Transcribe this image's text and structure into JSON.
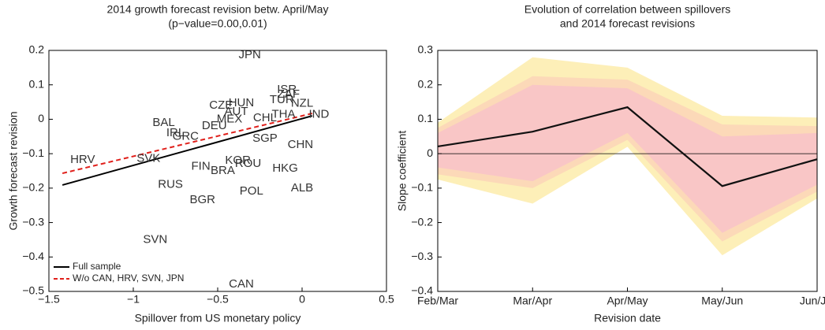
{
  "chart_data": [
    {
      "type": "scatter",
      "title": [
        "2014 growth forecast revision betw. April/May",
        "(p−value=0.00,0.01)"
      ],
      "xlabel": "Spillover from US monetary policy",
      "ylabel": "Growth forecast revision",
      "xlim": [
        -1.5,
        0.5
      ],
      "xticks": [
        {
          "value": -1.5,
          "label": "−1.5"
        },
        {
          "value": -1,
          "label": "−1"
        },
        {
          "value": -0.5,
          "label": "−0.5"
        },
        0,
        0.5
      ],
      "ylim": [
        -0.5,
        0.2
      ],
      "yticks": [
        {
          "value": -0.5,
          "label": "−0.5"
        },
        {
          "value": -0.4,
          "label": "−0.4"
        },
        {
          "value": -0.3,
          "label": "−0.3"
        },
        {
          "value": -0.2,
          "label": "−0.2"
        },
        {
          "value": -0.1,
          "label": "−0.1"
        },
        0,
        0.1,
        0.2
      ],
      "points": {
        "labels": [
          "JPN",
          "HRV",
          "SVK",
          "BAL",
          "IRL",
          "GRC",
          "FIN",
          "BRA",
          "KOR",
          "ROU",
          "RUS",
          "BGR",
          "POL",
          "HKG",
          "ALB",
          "CHN",
          "SVN",
          "CAN",
          "CZE",
          "HUN",
          "AUT",
          "DEU",
          "MEX",
          "CHL",
          "THA",
          "SGP",
          "IND",
          "NZL",
          "TUR",
          "ZAF",
          "ISR"
        ],
        "x": [
          -0.31,
          -1.3,
          -0.91,
          -0.82,
          -0.75,
          -0.69,
          -0.6,
          -0.47,
          -0.38,
          -0.32,
          -0.78,
          -0.59,
          -0.3,
          -0.1,
          0.0,
          -0.01,
          -0.87,
          -0.36,
          -0.48,
          -0.36,
          -0.39,
          -0.52,
          -0.43,
          -0.22,
          -0.11,
          -0.22,
          0.1,
          0.0,
          -0.12,
          -0.08,
          -0.09
        ],
        "y": [
          0.186,
          -0.118,
          -0.115,
          -0.01,
          -0.04,
          -0.05,
          -0.137,
          -0.15,
          -0.12,
          -0.13,
          -0.19,
          -0.235,
          -0.21,
          -0.143,
          -0.2,
          -0.075,
          -0.35,
          -0.48,
          0.04,
          0.047,
          0.022,
          -0.02,
          0.0,
          0.003,
          0.013,
          -0.056,
          0.013,
          0.045,
          0.056,
          0.072,
          0.086
        ]
      },
      "lines": [
        {
          "name": "Full sample",
          "color": "#000000",
          "dash": false,
          "x": [
            -1.42,
            0.06
          ],
          "values": [
            -0.191,
            0.01
          ]
        },
        {
          "name": "W/o CAN, HRV, SVN, JPN",
          "color": "#e0201b",
          "dash": true,
          "x": [
            -1.42,
            0.06
          ],
          "values": [
            -0.157,
            0.017
          ]
        }
      ],
      "legend": "lower left"
    },
    {
      "type": "band-line",
      "title": [
        "Evolution of correlation between spillovers",
        "and 2014 forecast revisions"
      ],
      "xlabel": "Revision date",
      "ylabel": "Slope coefficient",
      "categories": [
        "Feb/Mar",
        "Mar/Apr",
        "Apr/May",
        "May/Jun",
        "Jun/Jul"
      ],
      "ylim": [
        -0.4,
        0.3
      ],
      "yticks": [
        {
          "value": -0.4,
          "label": "−0.4"
        },
        {
          "value": -0.3,
          "label": "−0.3"
        },
        {
          "value": -0.2,
          "label": "−0.2"
        },
        {
          "value": -0.1,
          "label": "−0.1"
        },
        0,
        0.1,
        0.2,
        0.3
      ],
      "bands": [
        {
          "color": "#fdefb8",
          "lower": [
            -0.075,
            -0.145,
            0.02,
            -0.295,
            -0.13
          ],
          "upper": [
            0.09,
            0.28,
            0.25,
            0.11,
            0.105
          ]
        },
        {
          "color": "#fcd9b8",
          "lower": [
            -0.06,
            -0.1,
            0.04,
            -0.255,
            -0.11
          ],
          "upper": [
            0.075,
            0.225,
            0.215,
            0.085,
            0.08
          ]
        },
        {
          "color": "#f9c6c6",
          "lower": [
            -0.04,
            -0.08,
            0.06,
            -0.23,
            -0.09
          ],
          "upper": [
            0.06,
            0.2,
            0.19,
            0.05,
            0.06
          ]
        }
      ],
      "series": [
        {
          "color": "#111111",
          "values": [
            0.021,
            0.064,
            0.135,
            -0.094,
            -0.016
          ]
        }
      ],
      "zero_line": true
    }
  ]
}
